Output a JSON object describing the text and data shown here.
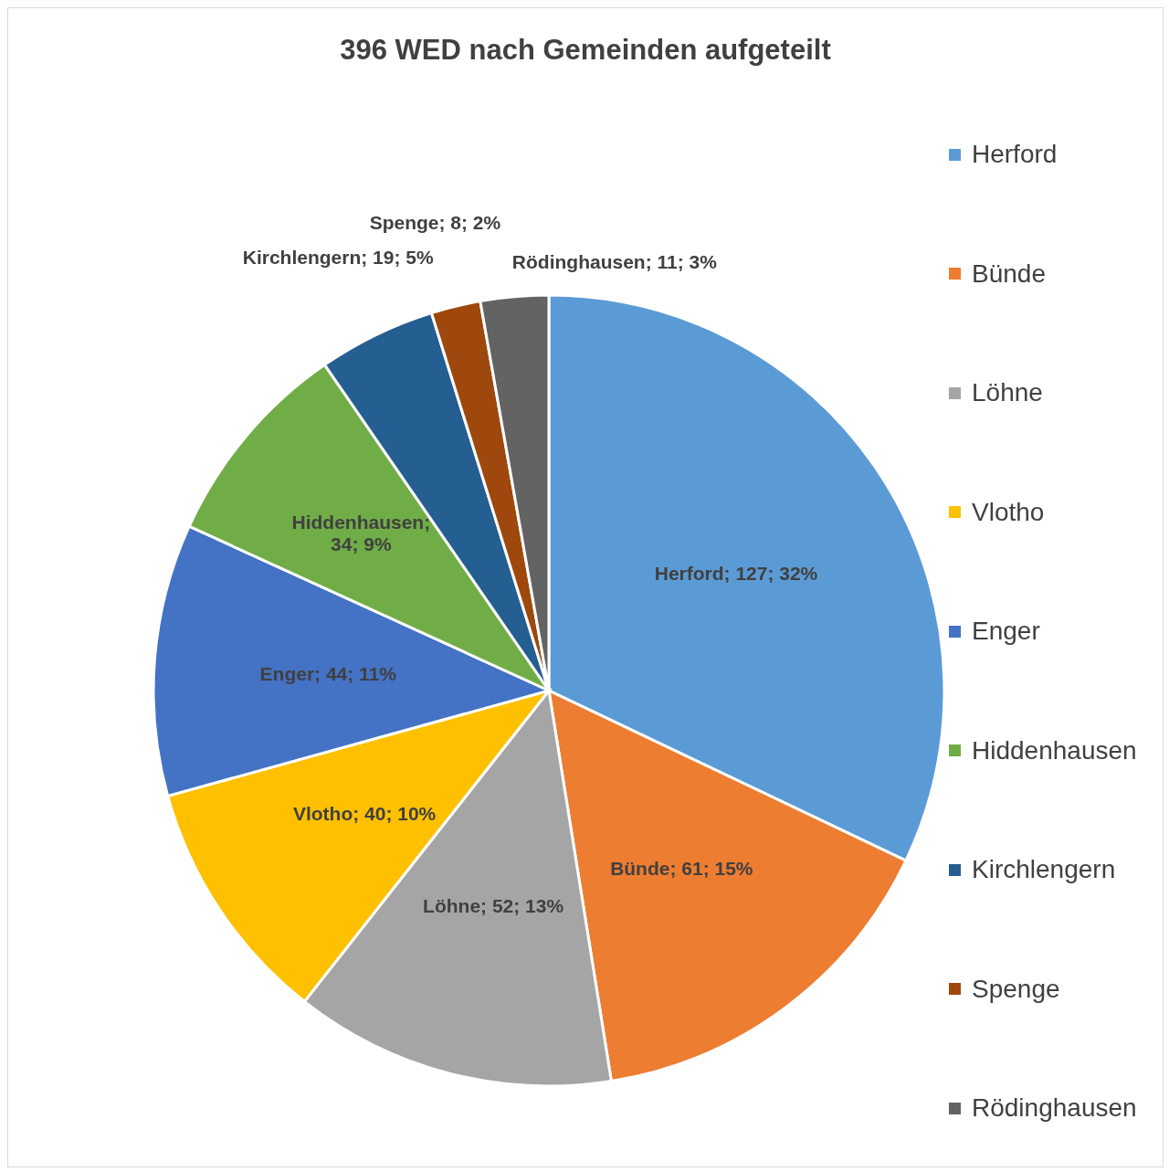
{
  "chart_data": {
    "type": "pie",
    "title": "396 WED nach Gemeinden aufgeteilt",
    "categories": [
      "Herford",
      "Bünde",
      "Löhne",
      "Vlotho",
      "Enger",
      "Hiddenhausen",
      "Kirchlengern",
      "Spenge",
      "Rödinghausen"
    ],
    "values": [
      127,
      61,
      52,
      40,
      44,
      34,
      19,
      8,
      11
    ],
    "colors": [
      "#5b9bd5",
      "#ed7d31",
      "#a5a5a5",
      "#ffc000",
      "#4472c4",
      "#70ad47",
      "#255e91",
      "#9e480e",
      "#636363"
    ],
    "value_labels": [
      "Herford; 127; 32%",
      "Bünde; 61; 15%",
      "Löhne; 52; 13%",
      "Vlotho; 40; 10%",
      "Enger; 44; 11%",
      "Hiddenhausen; 34; 9%",
      "Kirchlengern; 19; 5%",
      "Spenge; 8; 2%",
      "Rödinghausen; 11; 3%"
    ],
    "legend": "right"
  }
}
